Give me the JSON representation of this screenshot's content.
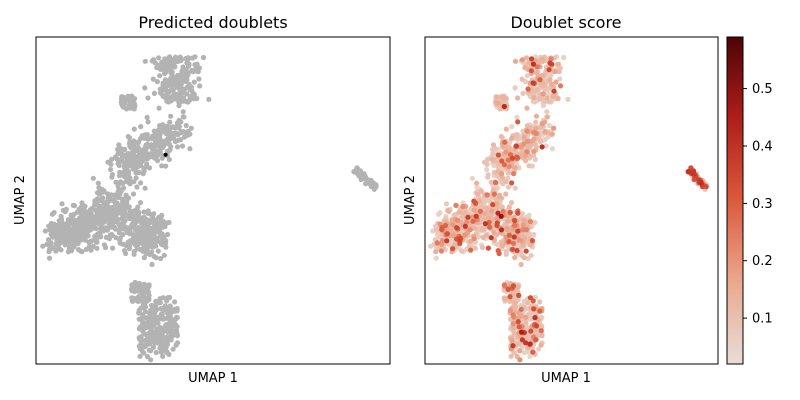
{
  "chart_data": [
    {
      "type": "scatter",
      "title": "Predicted doublets",
      "xlabel": "UMAP 1",
      "ylabel": "UMAP 2",
      "xlim": [
        0,
        100
      ],
      "ylim": [
        0,
        100
      ],
      "grid": false,
      "legend": "none",
      "colors": {
        "singlet": "#b3b3b3",
        "doublet": "#000000"
      },
      "clusters": [
        {
          "name": "top",
          "x_range": [
            22,
            44
          ],
          "y_range": [
            58,
            95
          ]
        },
        {
          "name": "left",
          "x_range": [
            4,
            34
          ],
          "y_range": [
            32,
            52
          ]
        },
        {
          "name": "bottom",
          "x_range": [
            24,
            40
          ],
          "y_range": [
            3,
            25
          ]
        },
        {
          "name": "right",
          "x_range": [
            90,
            96
          ],
          "y_range": [
            52,
            60
          ]
        }
      ],
      "series": [
        {
          "values": [],
          "points": [
            [
              36.6,
              64.0
            ]
          ]
        }
      ]
    },
    {
      "type": "scatter",
      "title": "Doublet score",
      "xlabel": "UMAP 1",
      "ylabel": "UMAP 2",
      "xlim": [
        0,
        100
      ],
      "ylim": [
        0,
        100
      ],
      "grid": false,
      "colorbar": {
        "label": "",
        "range": [
          0.02,
          0.59
        ],
        "ticks": [
          "0.1",
          "0.2",
          "0.3",
          "0.4",
          "0.5"
        ],
        "cmap": [
          "#e8ddd8",
          "#eba88f",
          "#db5a3d",
          "#b01e1a",
          "#4e0307"
        ]
      },
      "score_range": [
        0.02,
        0.59
      ]
    }
  ]
}
